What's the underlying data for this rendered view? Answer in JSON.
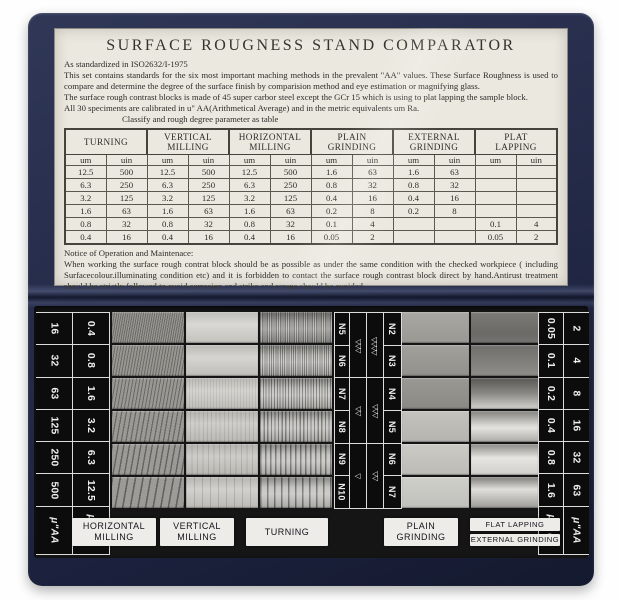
{
  "card": {
    "title": "SURFACE ROUGNESS STAND COMPARATOR",
    "intro": [
      "As standardized in ISO2632/I-1975",
      "This set contains standards for the six most important maching methods in the prevalent \"AA\" values. These Surface Roughness is used to compare and determine the degree of the surface finish by comparision method and eye estimation or magnifying glass.",
      "The surface rough contrast blocks is made of 45 super carbor steel except the GCr 15 which is using to plat lapping the sample block.",
      "All 30 speciments are calibrated in u\" AA(Arithmetical Average) and in the metric equivalents um Ra.",
      "Classify and rough degree parameter as table"
    ],
    "table": {
      "unit_cols": [
        "um",
        "uin"
      ],
      "methods": [
        {
          "name": [
            "TURNING"
          ],
          "um": [
            "12.5",
            "6.3",
            "3.2",
            "1.6",
            "0.8",
            "0.4"
          ],
          "uin": [
            "500",
            "250",
            "125",
            "63",
            "32",
            "16"
          ]
        },
        {
          "name": [
            "VERTICAL",
            "MILLING"
          ],
          "um": [
            "12.5",
            "6.3",
            "3.2",
            "1.6",
            "0.8",
            "0.4"
          ],
          "uin": [
            "500",
            "250",
            "125",
            "63",
            "32",
            "16"
          ]
        },
        {
          "name": [
            "HORIZONTAL",
            "MILLING"
          ],
          "um": [
            "12.5",
            "6.3",
            "3.2",
            "1.6",
            "0.8",
            "0.4"
          ],
          "uin": [
            "500",
            "250",
            "125",
            "63",
            "32",
            "16"
          ]
        },
        {
          "name": [
            "PLAIN",
            "GRINDING"
          ],
          "um": [
            "1.6",
            "0.8",
            "0.4",
            "0.2",
            "0.1",
            "0.05"
          ],
          "uin": [
            "63",
            "32",
            "16",
            "8",
            "4",
            "2"
          ]
        },
        {
          "name": [
            "EXTERNAL",
            "GRINDING"
          ],
          "um": [
            "1.6",
            "0.8",
            "0.4",
            "0.2",
            "",
            ""
          ],
          "uin": [
            "63",
            "32",
            "16",
            "8",
            "",
            ""
          ]
        },
        {
          "name": [
            "PLAT",
            "LAPPING"
          ],
          "um": [
            "",
            "",
            "",
            "",
            "0.1",
            "0.05"
          ],
          "uin": [
            "",
            "",
            "",
            "",
            "4",
            "2"
          ]
        }
      ]
    },
    "notice_title": "Notice of Operation and Maintenace:",
    "notice_body": "When working the surface rough contrat block should be as possible as under the same condition with the checked workpiece ( including Surfacecolour.illuminating condition etc) and it is forbidden to contact the surface rough contrast block direct by hand.Antirust treatment should be strictly followed to avoid corrosion and strike and scrape should be avoided."
  },
  "tray": {
    "left_scale": {
      "uaa": [
        "16",
        "32",
        "63",
        "125",
        "250",
        "500"
      ],
      "umra": [
        "0.4",
        "0.8",
        "1.6",
        "3.2",
        "6.3",
        "12.5"
      ],
      "uaa_unit": "μ\"AA",
      "umra_unit": "μm Ra"
    },
    "right_scale": {
      "umra": [
        "0.05",
        "0.1",
        "0.2",
        "0.4",
        "0.8",
        "1.6"
      ],
      "uaa": [
        "2",
        "4",
        "8",
        "16",
        "32",
        "63"
      ],
      "umra_unit": "μm Ra",
      "uaa_unit": "μ\"AA"
    },
    "center_scale": {
      "left_n": [
        "N5",
        "N6",
        "N7",
        "N8",
        "N9",
        "N10"
      ],
      "left_tri": [
        "▽▽▽",
        "▽▽",
        "▽"
      ],
      "right_tri": [
        "▽▽▽▽",
        "▽▽▽",
        "▽▽"
      ],
      "right_n": [
        "N2",
        "N3",
        "N4",
        "N5",
        "N6",
        "N7"
      ]
    },
    "column_labels": [
      {
        "id": "horizontal-milling",
        "lines": [
          "HORIZONTAL",
          "MILLING"
        ]
      },
      {
        "id": "vertical-milling",
        "lines": [
          "VERTICAL",
          "MILLING"
        ]
      },
      {
        "id": "turning",
        "lines": [
          "TURNING"
        ]
      },
      {
        "id": "plain-grinding",
        "lines": [
          "PLAIN",
          "GRINDING"
        ]
      },
      {
        "id": "flat-lapping",
        "lines": [
          "FLAT LAPPING"
        ]
      },
      {
        "id": "external-grinding",
        "lines": [
          "EXTERNAL GRINDING"
        ]
      }
    ]
  },
  "colors": {
    "case_navy": "#242b49",
    "tray_black": "#151515",
    "card_bg": "#ebe8df",
    "label_white": "#edece8"
  }
}
